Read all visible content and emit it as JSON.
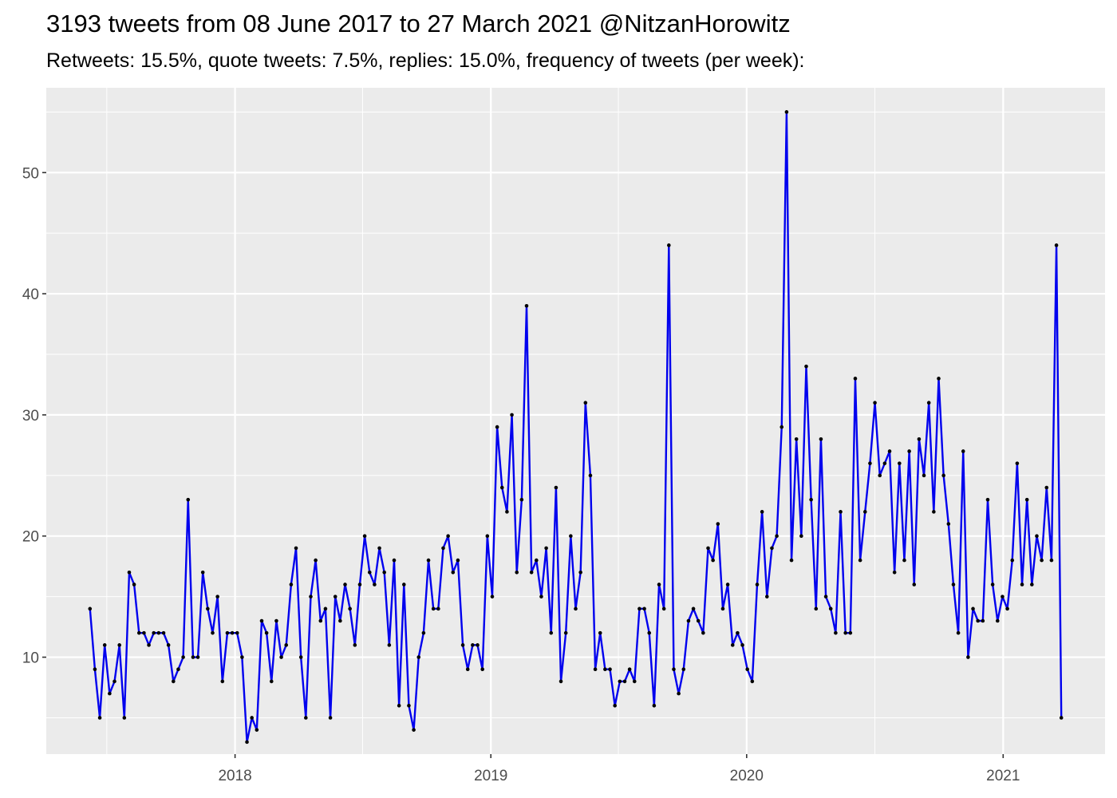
{
  "chart_data": {
    "type": "line",
    "title": "3193 tweets from 08 June 2017 to 27 March 2021 @NitzanHorowitz",
    "subtitle": "Retweets: 15.5%, quote tweets: 7.5%, replies: 15.0%, frequency of tweets (per week):",
    "xlabel": "",
    "ylabel": "",
    "x_start": "2017-06-08",
    "x_interval_days": 7,
    "ylim": [
      2,
      57
    ],
    "x_ticks": [
      {
        "date": "2018-01-01",
        "label": "2018"
      },
      {
        "date": "2019-01-01",
        "label": "2019"
      },
      {
        "date": "2020-01-01",
        "label": "2020"
      },
      {
        "date": "2021-01-01",
        "label": "2021"
      }
    ],
    "x_minor_ticks": [
      "2017-07-02",
      "2018-07-02",
      "2019-07-02",
      "2020-07-02"
    ],
    "y_ticks": [
      10,
      20,
      30,
      40,
      50
    ],
    "y_minor_ticks": [
      5,
      15,
      25,
      35,
      45,
      55
    ],
    "grid": true,
    "line_color": "#0000ee",
    "point_color": "#000000",
    "panel_color": "#ebebeb",
    "values": [
      14,
      9,
      5,
      11,
      7,
      8,
      11,
      5,
      17,
      16,
      12,
      12,
      11,
      12,
      12,
      12,
      11,
      8,
      9,
      10,
      23,
      10,
      10,
      17,
      14,
      12,
      15,
      8,
      12,
      12,
      12,
      10,
      3,
      5,
      4,
      13,
      12,
      8,
      13,
      10,
      11,
      16,
      19,
      10,
      5,
      15,
      18,
      13,
      14,
      5,
      15,
      13,
      16,
      14,
      11,
      16,
      20,
      17,
      16,
      19,
      17,
      11,
      18,
      6,
      16,
      6,
      4,
      10,
      12,
      18,
      14,
      14,
      19,
      20,
      17,
      18,
      11,
      9,
      11,
      11,
      9,
      20,
      15,
      29,
      24,
      22,
      30,
      17,
      23,
      39,
      17,
      18,
      15,
      19,
      12,
      24,
      8,
      12,
      20,
      14,
      17,
      31,
      25,
      9,
      12,
      9,
      9,
      6,
      8,
      8,
      9,
      8,
      14,
      14,
      12,
      6,
      16,
      14,
      44,
      9,
      7,
      9,
      13,
      14,
      13,
      12,
      19,
      18,
      21,
      14,
      16,
      11,
      12,
      11,
      9,
      8,
      16,
      22,
      15,
      19,
      20,
      29,
      55,
      18,
      28,
      20,
      34,
      23,
      14,
      28,
      15,
      14,
      12,
      22,
      12,
      12,
      33,
      18,
      22,
      26,
      31,
      25,
      26,
      27,
      17,
      26,
      18,
      27,
      16,
      28,
      25,
      31,
      22,
      33,
      25,
      21,
      16,
      12,
      27,
      10,
      14,
      13,
      13,
      23,
      16,
      13,
      15,
      14,
      18,
      26,
      16,
      23,
      16,
      20,
      18,
      24,
      18,
      44,
      5
    ]
  }
}
